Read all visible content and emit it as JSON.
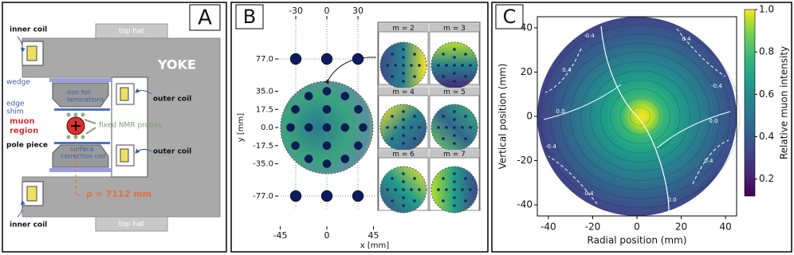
{
  "panels": [
    "A",
    "B",
    "C"
  ],
  "diagram": {
    "inner_coil_top": "inner coil",
    "top_hat_top": "top hat",
    "yoke": "YOKE",
    "wedge": "wedge",
    "iron_foil": [
      "iron foil",
      "laminations"
    ],
    "outer_coil_top": "outer coil",
    "edge_shim": [
      "edge",
      "shim"
    ],
    "muon_region": [
      "muon",
      "region"
    ],
    "fixed_probes": "fixed NMR probes",
    "pole_piece": "pole piece",
    "surface_coil": [
      "surface",
      "correction coil"
    ],
    "outer_coil_bottom": "outer coil",
    "radius": "ρ = 7112 mm",
    "inner_coil_bottom": "inner coil",
    "top_hat_bottom": "top hat"
  },
  "multipole_maps": [
    "m = 2",
    "m = 3",
    "m = 4",
    "m = 5",
    "m = 6",
    "m = 7"
  ],
  "chart_data": [
    {
      "type": "scatter",
      "xlabel": "x [mm]",
      "ylabel": "y [mm]",
      "color": "#0d1b5e",
      "x": [
        -30,
        0,
        30,
        0,
        17.5,
        0,
        -17.5,
        0,
        35,
        30.3,
        17.5,
        0,
        -17.5,
        -30.3,
        -35,
        -30.3,
        -17.5,
        0,
        17.5,
        30.3,
        -30,
        0,
        30
      ],
      "y": [
        77,
        77,
        77,
        0,
        0,
        17.5,
        0,
        -17.5,
        0,
        17.5,
        30.3,
        35,
        30.3,
        17.5,
        0,
        -17.5,
        -30.3,
        -35,
        -30.3,
        -17.5,
        -77,
        -77,
        -77
      ],
      "xlim": [
        -60,
        60
      ],
      "ylim": [
        -95,
        95
      ],
      "xticks": [
        -45,
        0,
        45
      ],
      "x2ticks": [
        -30,
        0,
        30
      ],
      "yticks": [
        {
          "value": 77,
          "label": "77.0"
        },
        {
          "value": 35,
          "label": "35.0"
        },
        17.5,
        {
          "value": 0,
          "label": "0.0"
        },
        -17.5,
        {
          "value": -35,
          "label": "-35.0"
        },
        {
          "value": -77,
          "label": "-77.0"
        }
      ],
      "grid": true
    },
    {
      "type": "contour",
      "xlabel": "Radial position (mm)",
      "ylabel": "Vertical position (mm)",
      "xlim": [
        -45,
        45
      ],
      "ylim": [
        -45,
        45
      ],
      "xticks": [
        -40,
        -20,
        0,
        20,
        40
      ],
      "yticks": [
        -40,
        -20,
        0,
        20,
        40
      ],
      "colorbar": {
        "label": "Relative muon intensity",
        "lim": [
          0.12,
          1
        ],
        "ticks": [
          0.2,
          0.4,
          0.6,
          0.8,
          {
            "value": 1,
            "label": "1.0"
          }
        ]
      },
      "contour_labels": [
        "-0.4",
        "0.4",
        "0.0",
        "-0.4",
        "0.4",
        "0.0",
        "0.4",
        "-0.4",
        "0.0",
        "0.4"
      ]
    }
  ]
}
